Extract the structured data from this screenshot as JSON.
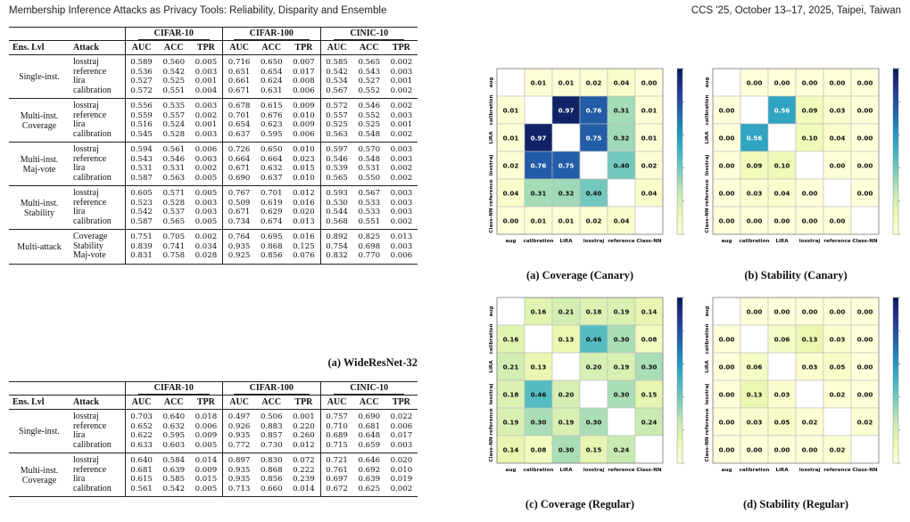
{
  "header": {
    "left": "Membership Inference Attacks as Privacy Tools: Reliability, Disparity and Ensemble",
    "right": "CCS '25, October 13–17, 2025, Taipei, Taiwan"
  },
  "tables": [
    {
      "caption": "(a) WideResNet-32",
      "datasets": [
        "CIFAR-10",
        "CIFAR-100",
        "CINIC-10"
      ],
      "columns": [
        "Ens. Lvl",
        "Attack",
        "AUC",
        "ACC",
        "TPR",
        "AUC",
        "ACC",
        "TPR",
        "AUC",
        "ACC",
        "TPR"
      ],
      "groups": [
        {
          "label": "Single-inst.",
          "rows": [
            {
              "attack": "losstraj",
              "values": [
                "0.589",
                "0.560",
                "0.005",
                "0.716",
                "0.650",
                "0.007",
                "0.585",
                "0.565",
                "0.002"
              ]
            },
            {
              "attack": "reference",
              "values": [
                "0.536",
                "0.542",
                "0.003",
                "0.651",
                "0.654",
                "0.017",
                "0.542",
                "0.543",
                "0.003"
              ]
            },
            {
              "attack": "lira",
              "values": [
                "0.527",
                "0.525",
                "0.001",
                "0.661",
                "0.624",
                "0.008",
                "0.534",
                "0.527",
                "0.001"
              ]
            },
            {
              "attack": "calibration",
              "values": [
                "0.572",
                "0.551",
                "0.004",
                "0.671",
                "0.631",
                "0.006",
                "0.567",
                "0.552",
                "0.002"
              ]
            }
          ]
        },
        {
          "label": "Multi-inst.\nCoverage",
          "rows": [
            {
              "attack": "losstraj",
              "values": [
                "0.556",
                "0.535",
                "0.003",
                "0.678",
                "0.615",
                "0.009",
                "0.572",
                "0.546",
                "0.002"
              ]
            },
            {
              "attack": "reference",
              "values": [
                "0.559",
                "0.557",
                "0.002",
                "0.701",
                "0.676",
                "0.010",
                "0.557",
                "0.552",
                "0.003"
              ]
            },
            {
              "attack": "lira",
              "values": [
                "0.516",
                "0.524",
                "0.001",
                "0.654",
                "0.623",
                "0.009",
                "0.525",
                "0.525",
                "0.001"
              ]
            },
            {
              "attack": "calibration",
              "values": [
                "0.545",
                "0.528",
                "0.003",
                "0.637",
                "0.595",
                "0.006",
                "0.563",
                "0.548",
                "0.002"
              ]
            }
          ]
        },
        {
          "label": "Multi-inst.\nMaj-vote",
          "rows": [
            {
              "attack": "losstraj",
              "values": [
                "0.594",
                "0.561",
                "0.006",
                "0.726",
                "0.650",
                "0.010",
                "0.597",
                "0.570",
                "0.003"
              ]
            },
            {
              "attack": "reference",
              "values": [
                "0.543",
                "0.546",
                "0.003",
                "0.664",
                "0.664",
                "0.023",
                "0.546",
                "0.548",
                "0.003"
              ]
            },
            {
              "attack": "lira",
              "values": [
                "0.531",
                "0.531",
                "0.002",
                "0.671",
                "0.632",
                "0.015",
                "0.539",
                "0.531",
                "0.002"
              ]
            },
            {
              "attack": "calibration",
              "values": [
                "0.587",
                "0.563",
                "0.005",
                "0.690",
                "0.637",
                "0.010",
                "0.565",
                "0.550",
                "0.002"
              ]
            }
          ]
        },
        {
          "label": "Multi-inst.\nStability",
          "rows": [
            {
              "attack": "losstraj",
              "values": [
                "0.605",
                "0.571",
                "0.005",
                "0.767",
                "0.701",
                "0.012",
                "0.593",
                "0.567",
                "0.003"
              ]
            },
            {
              "attack": "reference",
              "values": [
                "0.523",
                "0.528",
                "0.003",
                "0.509",
                "0.619",
                "0.016",
                "0.530",
                "0.533",
                "0.003"
              ]
            },
            {
              "attack": "lira",
              "values": [
                "0.542",
                "0.537",
                "0.003",
                "0.671",
                "0.629",
                "0.020",
                "0.544",
                "0.533",
                "0.003"
              ]
            },
            {
              "attack": "calibration",
              "values": [
                "0.587",
                "0.565",
                "0.005",
                "0.734",
                "0.674",
                "0.013",
                "0.568",
                "0.551",
                "0.002"
              ]
            }
          ]
        },
        {
          "label": "Multi-attack",
          "rows": [
            {
              "attack": "Coverage",
              "values": [
                "0.751",
                "0.705",
                "0.002",
                "0.764",
                "0.695",
                "0.016",
                "0.892",
                "0.825",
                "0.013"
              ]
            },
            {
              "attack": "Stability",
              "values": [
                "0.839",
                "0.741",
                "0.034",
                "0.935",
                "0.868",
                "0.125",
                "0.754",
                "0.698",
                "0.003"
              ]
            },
            {
              "attack": "Maj-vote",
              "values": [
                "0.831",
                "0.758",
                "0.028",
                "0.925",
                "0.856",
                "0.076",
                "0.832",
                "0.770",
                "0.006"
              ]
            }
          ]
        }
      ]
    },
    {
      "caption": "",
      "datasets": [
        "CIFAR-10",
        "CIFAR-100",
        "CINIC-10"
      ],
      "columns": [
        "Ens. Lvl",
        "Attack",
        "AUC",
        "ACC",
        "TPR",
        "AUC",
        "ACC",
        "TPR",
        "AUC",
        "ACC",
        "TPR"
      ],
      "groups": [
        {
          "label": "Single-inst.",
          "rows": [
            {
              "attack": "losstraj",
              "values": [
                "0.703",
                "0.640",
                "0.018",
                "0.497",
                "0.506",
                "0.001",
                "0.757",
                "0.690",
                "0.022"
              ]
            },
            {
              "attack": "reference",
              "values": [
                "0.652",
                "0.632",
                "0.006",
                "0.926",
                "0.883",
                "0.220",
                "0.710",
                "0.681",
                "0.006"
              ]
            },
            {
              "attack": "lira",
              "values": [
                "0.622",
                "0.595",
                "0.009",
                "0.935",
                "0.857",
                "0.260",
                "0.689",
                "0.648",
                "0.017"
              ]
            },
            {
              "attack": "calibration",
              "values": [
                "0.633",
                "0.603",
                "0.005",
                "0.772",
                "0.730",
                "0.012",
                "0.715",
                "0.659",
                "0.003"
              ]
            }
          ]
        },
        {
          "label": "Multi-inst.\nCoverage",
          "rows": [
            {
              "attack": "losstraj",
              "values": [
                "0.640",
                "0.584",
                "0.014",
                "0.897",
                "0.830",
                "0.072",
                "0.721",
                "0.646",
                "0.020"
              ]
            },
            {
              "attack": "reference",
              "values": [
                "0.681",
                "0.639",
                "0.009",
                "0.935",
                "0.868",
                "0.222",
                "0.761",
                "0.692",
                "0.010"
              ]
            },
            {
              "attack": "lira",
              "values": [
                "0.615",
                "0.585",
                "0.015",
                "0.935",
                "0.856",
                "0.239",
                "0.697",
                "0.639",
                "0.019"
              ]
            },
            {
              "attack": "calibration",
              "values": [
                "0.561",
                "0.542",
                "0.005",
                "0.713",
                "0.660",
                "0.014",
                "0.672",
                "0.625",
                "0.002"
              ]
            }
          ]
        }
      ]
    }
  ],
  "chart_data": [
    {
      "type": "heatmap",
      "caption": "(a) Coverage (Canary)",
      "row_labels": [
        "aug",
        "calibration",
        "LiRA",
        "losstraj",
        "reference",
        "Class-NN"
      ],
      "col_labels": [
        "aug",
        "calibration",
        "LiRA",
        "losstraj",
        "reference",
        "Class-NN"
      ],
      "values": [
        [
          null,
          "0.01",
          "0.01",
          "0.02",
          "0.04",
          "0.00"
        ],
        [
          "0.01",
          null,
          "0.97",
          "0.76",
          "0.31",
          "0.01"
        ],
        [
          "0.01",
          "0.97",
          null,
          "0.75",
          "0.32",
          "0.01"
        ],
        [
          "0.02",
          "0.76",
          "0.75",
          null,
          "0.40",
          "0.02"
        ],
        [
          "0.04",
          "0.31",
          "0.32",
          "0.40",
          null,
          "0.04"
        ],
        [
          "0.00",
          "0.01",
          "0.01",
          "0.02",
          "0.04",
          null
        ]
      ],
      "colorbar_ticks": [
        "1.0",
        "0.8",
        "0.6",
        "0.4",
        "0.2",
        "0.0"
      ]
    },
    {
      "type": "heatmap",
      "caption": "(b) Stability (Canary)",
      "row_labels": [
        "aug",
        "calibration",
        "LiRA",
        "losstraj",
        "reference",
        "Class-NN"
      ],
      "col_labels": [
        "aug",
        "calibration",
        "LiRA",
        "losstraj",
        "reference",
        "Class-NN"
      ],
      "values": [
        [
          null,
          "0.00",
          "0.00",
          "0.00",
          "0.00",
          "0.00"
        ],
        [
          "0.00",
          null,
          "0.56",
          "0.09",
          "0.03",
          "0.00"
        ],
        [
          "0.00",
          "0.56",
          null,
          "0.10",
          "0.04",
          "0.00"
        ],
        [
          "0.00",
          "0.09",
          "0.10",
          null,
          "0.00",
          "0.00"
        ],
        [
          "0.00",
          "0.03",
          "0.04",
          "0.00",
          null,
          "0.00"
        ],
        [
          "0.00",
          "0.00",
          "0.00",
          "0.00",
          "0.00",
          null
        ]
      ],
      "colorbar_ticks": [
        "1.0",
        "0.8",
        "0.6",
        "0.4",
        "0.2",
        "0.0"
      ]
    },
    {
      "type": "heatmap",
      "caption": "(c) Coverage (Regular)",
      "row_labels": [
        "aug",
        "calibration",
        "LiRA",
        "losstraj",
        "reference",
        "Class-NN"
      ],
      "col_labels": [
        "aug",
        "calibration",
        "LiRA",
        "losstraj",
        "reference",
        "Class-NN"
      ],
      "values": [
        [
          null,
          "0.16",
          "0.21",
          "0.18",
          "0.19",
          "0.14"
        ],
        [
          "0.16",
          null,
          "0.13",
          "0.46",
          "0.30",
          "0.08"
        ],
        [
          "0.21",
          "0.13",
          null,
          "0.20",
          "0.19",
          "0.30"
        ],
        [
          "0.18",
          "0.46",
          "0.20",
          null,
          "0.30",
          "0.15"
        ],
        [
          "0.19",
          "0.30",
          "0.19",
          "0.30",
          null,
          "0.24"
        ],
        [
          "0.14",
          "0.08",
          "0.30",
          "0.15",
          "0.24",
          null
        ]
      ],
      "colorbar_ticks": [
        "1.0",
        "0.8",
        "0.6",
        "0.4",
        "0.2",
        "0.0"
      ]
    },
    {
      "type": "heatmap",
      "caption": "(d) Stability (Regular)",
      "row_labels": [
        "aug",
        "calibration",
        "LiRA",
        "losstraj",
        "reference",
        "Class-NN"
      ],
      "col_labels": [
        "aug",
        "calibration",
        "LiRA",
        "losstraj",
        "reference",
        "Class-NN"
      ],
      "values": [
        [
          null,
          "0.00",
          "0.00",
          "0.00",
          "0.00",
          "0.00"
        ],
        [
          "0.00",
          null,
          "0.06",
          "0.13",
          "0.03",
          "0.00"
        ],
        [
          "0.00",
          "0.06",
          null,
          "0.03",
          "0.05",
          "0.00"
        ],
        [
          "0.00",
          "0.13",
          "0.03",
          null,
          "0.02",
          "0.00"
        ],
        [
          "0.00",
          "0.03",
          "0.05",
          "0.02",
          null,
          "0.02"
        ],
        [
          "0.00",
          "0.00",
          "0.00",
          "0.00",
          "0.02",
          null
        ]
      ],
      "colorbar_ticks": [
        "1.0",
        "0.8",
        "0.6",
        "0.4",
        "0.2",
        "0.0"
      ]
    }
  ]
}
